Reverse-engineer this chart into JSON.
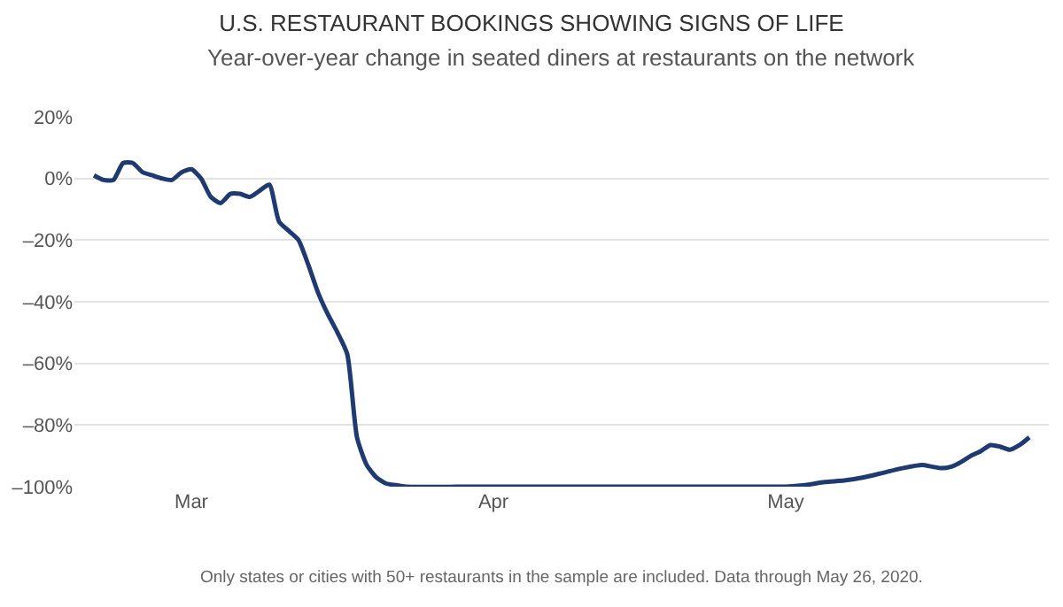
{
  "chart_data": {
    "type": "line",
    "title": "U.S. RESTAURANT BOOKINGS SHOWING SIGNS OF LIFE",
    "subtitle": "Year-over-year change in seated diners at restaurants on the network",
    "x": [
      "2020-02-20",
      "2020-02-21",
      "2020-02-22",
      "2020-02-23",
      "2020-02-24",
      "2020-02-25",
      "2020-02-26",
      "2020-02-27",
      "2020-02-28",
      "2020-02-29",
      "2020-03-01",
      "2020-03-02",
      "2020-03-03",
      "2020-03-04",
      "2020-03-05",
      "2020-03-06",
      "2020-03-07",
      "2020-03-08",
      "2020-03-09",
      "2020-03-10",
      "2020-03-11",
      "2020-03-12",
      "2020-03-13",
      "2020-03-14",
      "2020-03-15",
      "2020-03-16",
      "2020-03-17",
      "2020-03-18",
      "2020-03-19",
      "2020-03-20",
      "2020-03-21",
      "2020-03-22",
      "2020-03-23",
      "2020-03-30",
      "2020-04-06",
      "2020-04-13",
      "2020-04-20",
      "2020-04-27",
      "2020-05-01",
      "2020-05-03",
      "2020-05-05",
      "2020-05-07",
      "2020-05-09",
      "2020-05-11",
      "2020-05-13",
      "2020-05-15",
      "2020-05-16",
      "2020-05-17",
      "2020-05-18",
      "2020-05-19",
      "2020-05-20",
      "2020-05-21",
      "2020-05-22",
      "2020-05-23",
      "2020-05-24",
      "2020-05-25",
      "2020-05-26"
    ],
    "series": [
      {
        "color": "#1f3a70",
        "values": [
          1,
          -0.5,
          -0.5,
          5,
          5,
          2,
          1,
          0,
          -0.5,
          2,
          3,
          0,
          -6,
          -8,
          -5,
          -5,
          -6,
          -4,
          -2,
          -14,
          -17,
          -20,
          -28,
          -37,
          -44,
          -50,
          -57,
          -84,
          -93,
          -97,
          -99,
          -99.5,
          -100,
          -100,
          -100,
          -100,
          -100,
          -100,
          -100,
          -99.5,
          -98.5,
          -98,
          -97,
          -95.5,
          -94,
          -93,
          -93.5,
          -94,
          -93.5,
          -92,
          -90,
          -88.5,
          -86.5,
          -87,
          -88,
          -86.5,
          -84
        ]
      }
    ],
    "xlim": [
      "2020-02-18",
      "2020-05-28"
    ],
    "xticks": [
      {
        "value": "2020-03-01",
        "label": "Mar"
      },
      {
        "value": "2020-04-01",
        "label": "Apr"
      },
      {
        "value": "2020-05-01",
        "label": "May"
      }
    ],
    "ylim": [
      -100,
      20
    ],
    "yticks": [
      {
        "value": 20,
        "label": "20%"
      },
      {
        "value": 0,
        "label": "0%"
      },
      {
        "value": -20,
        "label": "–20%"
      },
      {
        "value": -40,
        "label": "–40%"
      },
      {
        "value": -60,
        "label": "–60%"
      },
      {
        "value": -80,
        "label": "–80%"
      },
      {
        "value": -100,
        "label": "–100%"
      }
    ],
    "grid": "y",
    "legend": false,
    "line_style": "solid",
    "annotations": [
      "Only states or cities with 50+ restaurants in the sample are included. Data through May 26, 2020."
    ]
  }
}
